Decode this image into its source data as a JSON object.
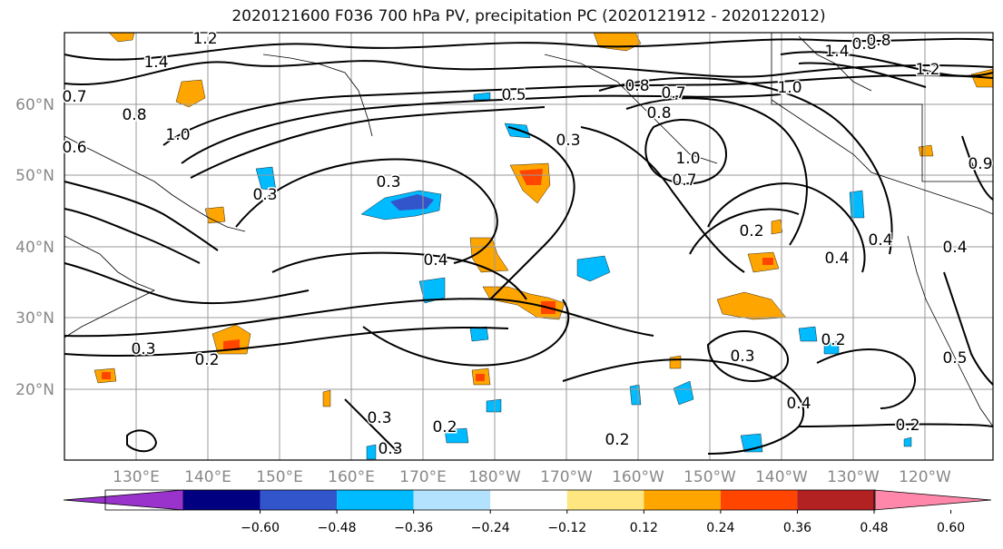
{
  "title": "2020121600 F036 700 hPa PV, precipitation PC (2020121912 - 2020122012)",
  "axes": {
    "lat_labels": [
      "60°N",
      "50°N",
      "40°N",
      "30°N",
      "20°N"
    ],
    "lon_labels": [
      "130°E",
      "140°E",
      "150°E",
      "160°E",
      "170°E",
      "180°W",
      "170°W",
      "160°W",
      "150°W",
      "140°W",
      "130°W",
      "120°W"
    ]
  },
  "contour_labels": [
    "1.2",
    "1.4",
    "0.7",
    "0.8",
    "1.0",
    "0.6",
    "0.3",
    "0.5",
    "0.8",
    "0.7",
    "0.8",
    "0.3",
    "1.0",
    "0.7",
    "1.0",
    "0.8",
    "1.4",
    "1.2",
    "0.8",
    "0.3",
    "0.2",
    "0.4",
    "0.4",
    "0.3",
    "0.2",
    "0.3",
    "0.3",
    "0.2",
    "0.2",
    "0.3",
    "0.2",
    "0.4",
    "0.2",
    "0.5",
    "0.4",
    "0.4",
    "0.9"
  ],
  "colorbar": {
    "tick_labels": [
      "−0.60",
      "−0.48",
      "−0.36",
      "−0.24",
      "−0.12",
      "0.12",
      "0.24",
      "0.36",
      "0.48",
      "0.60"
    ],
    "colors": [
      "#9933cc",
      "#000080",
      "#3355cc",
      "#00bbff",
      "#b3e2ff",
      "#ffffff",
      "#ffe680",
      "#ffa500",
      "#ff4500",
      "#b22222",
      "#ff88aa"
    ]
  },
  "colors": {
    "frame": "#000000",
    "grid": "#999999",
    "axis_label": "#888888"
  }
}
